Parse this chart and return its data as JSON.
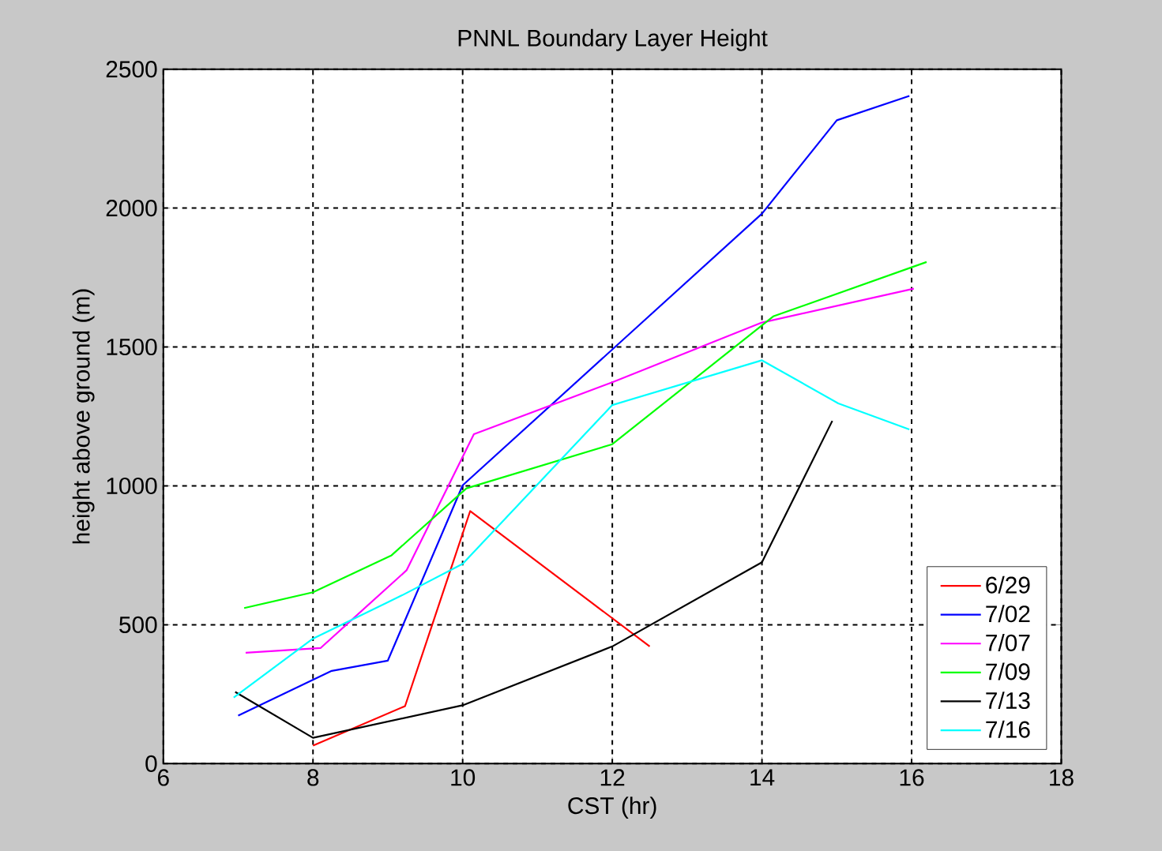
{
  "chart_data": {
    "type": "line",
    "title": "PNNL Boundary Layer Height",
    "xlabel": "CST (hr)",
    "ylabel": "height above ground (m)",
    "xlim": [
      6,
      18
    ],
    "xticks": [
      6,
      8,
      10,
      12,
      14,
      16,
      18
    ],
    "ylim": [
      0,
      2500
    ],
    "yticks": [
      0,
      500,
      1000,
      1500,
      2000,
      2500
    ],
    "grid": true,
    "legend": "bottom right",
    "marker": "none",
    "line_style": "solid",
    "series": [
      {
        "name": "6/29",
        "color": "#ff0000",
        "x": [
          8.0,
          9.23,
          10.1,
          12.5
        ],
        "values": [
          65,
          207,
          909,
          422
        ]
      },
      {
        "name": "7/02",
        "color": "#0000ff",
        "x": [
          7.0,
          8.25,
          9.0,
          10.0,
          14.0,
          15.0,
          15.97
        ],
        "values": [
          173,
          334,
          371,
          1002,
          1980,
          2316,
          2404
        ]
      },
      {
        "name": "7/07",
        "color": "#ff00ff",
        "x": [
          7.1,
          8.1,
          9.25,
          10.15,
          12.0,
          14.0,
          16.03
        ],
        "values": [
          399,
          416,
          696,
          1186,
          1373,
          1588,
          1710
        ]
      },
      {
        "name": "7/09",
        "color": "#00ff00",
        "x": [
          7.08,
          8.0,
          9.05,
          9.24,
          10.05,
          12.0,
          14.15,
          16.2
        ],
        "values": [
          560,
          617,
          750,
          796,
          991,
          1150,
          1610,
          1806
        ]
      },
      {
        "name": "7/13",
        "color": "#000000",
        "x": [
          6.96,
          8.0,
          10.0,
          12.0,
          14.0,
          14.94
        ],
        "values": [
          258,
          93,
          210,
          422,
          725,
          1234
        ]
      },
      {
        "name": "7/16",
        "color": "#00ffff",
        "x": [
          6.94,
          8.0,
          9.19,
          10.0,
          12.0,
          14.0,
          15.02,
          15.97
        ],
        "values": [
          238,
          450,
          606,
          719,
          1291,
          1452,
          1297,
          1203
        ]
      }
    ]
  }
}
